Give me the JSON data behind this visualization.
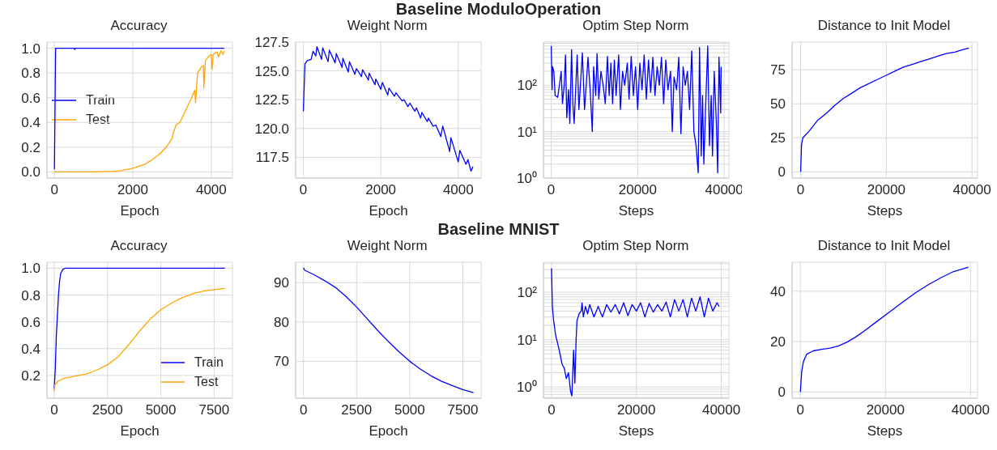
{
  "chart_data": [
    {
      "type": "line",
      "title": "Accuracy",
      "xlabel": "Epoch",
      "annotations": [
        "Baseline ModuloOperation"
      ],
      "xlim": [
        -190,
        4540
      ],
      "xticks": [
        0,
        2000,
        4000
      ],
      "ylim": [
        -0.05,
        1.05
      ],
      "yticks": [
        {
          "value": 0,
          "label": "0.0"
        },
        {
          "value": 0.2,
          "label": "0.2"
        },
        {
          "value": 0.4,
          "label": "0.4"
        },
        {
          "value": 0.6,
          "label": "0.6"
        },
        {
          "value": 0.8,
          "label": "0.8"
        },
        {
          "value": 1,
          "label": "1.0"
        }
      ],
      "grid": true,
      "legend": "center left",
      "series": [
        {
          "name": "Train",
          "color": "#0000ff",
          "x": [
            0,
            30,
            500,
            520,
            540,
            1000,
            2000,
            3000,
            4000,
            4330
          ],
          "values": [
            0.02,
            1.0,
            1.0,
            0.99,
            1.0,
            1.0,
            1.0,
            1.0,
            1.0,
            1.0
          ]
        },
        {
          "name": "Test",
          "color": "#ffa500",
          "x": [
            0,
            500,
            1000,
            1500,
            1700,
            2000,
            2300,
            2500,
            2700,
            2850,
            3000,
            3020,
            3100,
            3200,
            3350,
            3500,
            3580,
            3600,
            3650,
            3750,
            3800,
            3810,
            3850,
            3950,
            4000,
            4020,
            4050,
            4150,
            4180,
            4250,
            4300,
            4330
          ],
          "values": [
            0,
            0,
            0,
            0.005,
            0.01,
            0.03,
            0.06,
            0.1,
            0.15,
            0.2,
            0.27,
            0.3,
            0.38,
            0.4,
            0.5,
            0.6,
            0.66,
            0.56,
            0.8,
            0.85,
            0.86,
            0.68,
            0.9,
            0.94,
            0.95,
            0.83,
            0.95,
            0.97,
            0.93,
            0.98,
            0.95,
            0.98
          ]
        }
      ]
    },
    {
      "type": "line",
      "title": "Weight Norm",
      "xlabel": "Epoch",
      "xlim": [
        -200,
        4590
      ],
      "xticks": [
        0,
        2000,
        4000
      ],
      "ylim": [
        115.7,
        127.5
      ],
      "yticks": [
        117.5,
        {
          "value": 120,
          "label": "120.0"
        },
        122.5,
        {
          "value": 125,
          "label": "125.0"
        },
        127.5
      ],
      "grid": true,
      "series": [
        {
          "color": "#0000ff",
          "x": [
            0,
            40,
            100,
            200,
            250,
            320,
            350,
            470,
            500,
            640,
            670,
            820,
            850,
            1000,
            1020,
            1160,
            1190,
            1330,
            1370,
            1500,
            1530,
            1680,
            1700,
            1850,
            1870,
            2000,
            2040,
            2180,
            2210,
            2350,
            2390,
            2550,
            2600,
            2700,
            2750,
            2880,
            2920,
            3030,
            3060,
            3200,
            3230,
            3350,
            3420,
            3550,
            3600,
            3780,
            3810,
            4000,
            4040,
            4200,
            4250,
            4330,
            4380
          ],
          "values": [
            121.5,
            125.6,
            125.9,
            126.0,
            126.7,
            126.3,
            127.1,
            126.0,
            127.0,
            125.8,
            126.8,
            125.7,
            126.5,
            125.3,
            126.1,
            124.9,
            125.8,
            124.7,
            125.2,
            124.5,
            125.1,
            124.2,
            124.8,
            123.8,
            124.3,
            123.4,
            124.0,
            122.9,
            123.5,
            122.8,
            123.1,
            122.4,
            122.5,
            121.9,
            122.2,
            121.5,
            121.8,
            120.9,
            121.4,
            120.6,
            120.9,
            120.2,
            120.3,
            119.3,
            120.2,
            118.0,
            119.2,
            117.1,
            118.1,
            116.9,
            117.3,
            116.3,
            116.7
          ]
        }
      ]
    },
    {
      "type": "line",
      "title": "Optim Step Norm",
      "xlabel": "Steps",
      "xlim": [
        -1800,
        41100
      ],
      "xticks": [
        0,
        20000,
        40000
      ],
      "log": true,
      "ylim": [
        1,
        850
      ],
      "yticks": [
        {
          "value": 1,
          "label": "10⁰"
        },
        {
          "value": 2,
          "label": null
        },
        {
          "value": 3,
          "label": null
        },
        {
          "value": 4,
          "label": null
        },
        {
          "value": 5,
          "label": null
        },
        {
          "value": 6,
          "label": null
        },
        {
          "value": 7,
          "label": null
        },
        {
          "value": 8,
          "label": null
        },
        {
          "value": 9,
          "label": null
        },
        {
          "value": 10,
          "label": "10¹"
        },
        {
          "value": 20,
          "label": null
        },
        {
          "value": 30,
          "label": null
        },
        {
          "value": 40,
          "label": null
        },
        {
          "value": 50,
          "label": null
        },
        {
          "value": 60,
          "label": null
        },
        {
          "value": 70,
          "label": null
        },
        {
          "value": 80,
          "label": null
        },
        {
          "value": 90,
          "label": null
        },
        {
          "value": 100,
          "label": "10²"
        },
        {
          "value": 200,
          "label": null
        },
        {
          "value": 300,
          "label": null
        },
        {
          "value": 400,
          "label": null
        },
        {
          "value": 500,
          "label": null
        },
        {
          "value": 600,
          "label": null
        },
        {
          "value": 700,
          "label": null
        },
        {
          "value": 800,
          "label": null
        }
      ],
      "grid": true,
      "series": [
        {
          "color": "#0000ff",
          "x": [
            0,
            200,
            300,
            600,
            900,
            1500,
            2000,
            2300,
            2600,
            3000,
            3300,
            3600,
            4000,
            4300,
            4700,
            5000,
            5300,
            5700,
            6000,
            6400,
            6800,
            7200,
            7700,
            8100,
            8500,
            9000,
            9500,
            9800,
            10300,
            10600,
            11000,
            11500,
            12000,
            12500,
            13000,
            13400,
            13800,
            14200,
            14600,
            15000,
            15600,
            16000,
            16500,
            17000,
            17600,
            18000,
            18500,
            19000,
            19500,
            20000,
            20500,
            21000,
            21500,
            22000,
            22500,
            23000,
            23500,
            24000,
            24500,
            25000,
            25500,
            26000,
            26500,
            27000,
            27600,
            28000,
            28400,
            29000,
            29500,
            30000,
            30500,
            31000,
            31500,
            32000,
            32500,
            33000,
            33500,
            34000,
            34300,
            34700,
            35000,
            35300,
            35800,
            36200,
            36600,
            37000,
            37300,
            37700,
            38200,
            38500,
            38800,
            39200,
            39300
          ],
          "values": [
            700,
            80,
            250,
            200,
            60,
            55,
            120,
            200,
            40,
            100,
            450,
            20,
            80,
            15,
            580,
            40,
            15,
            100,
            450,
            30,
            120,
            500,
            30,
            100,
            400,
            80,
            10,
            250,
            60,
            480,
            50,
            200,
            100,
            40,
            420,
            60,
            300,
            40,
            350,
            60,
            450,
            30,
            200,
            100,
            300,
            50,
            420,
            60,
            250,
            30,
            300,
            80,
            450,
            50,
            350,
            70,
            400,
            60,
            250,
            100,
            400,
            40,
            350,
            80,
            200,
            10,
            150,
            80,
            400,
            9,
            250,
            100,
            200,
            30,
            550,
            10,
            5,
            1.3,
            650,
            3,
            60,
            2,
            60,
            700,
            5,
            60,
            3,
            200,
            15,
            1.3,
            400,
            25,
            250
          ]
        }
      ]
    },
    {
      "type": "line",
      "title": "Distance to Init Model",
      "xlabel": "Steps",
      "xlim": [
        -2000,
        41300
      ],
      "xticks": [
        0,
        20000,
        40000
      ],
      "ylim": [
        -4.6,
        95.4
      ],
      "yticks": [
        0,
        25,
        50,
        75
      ],
      "grid": true,
      "series": [
        {
          "color": "#0000ff",
          "x": [
            0,
            200,
            500,
            2000,
            3000,
            4000,
            6000,
            8000,
            10000,
            12000,
            14000,
            16000,
            18000,
            20000,
            22000,
            24000,
            26000,
            28000,
            30000,
            32000,
            34000,
            36000,
            38000,
            39300
          ],
          "values": [
            0,
            20,
            25,
            30,
            34,
            38,
            43,
            49,
            54,
            58,
            62,
            65,
            68,
            71,
            74,
            77,
            79,
            81,
            83,
            85,
            87,
            88,
            90,
            91
          ]
        }
      ]
    },
    {
      "type": "line",
      "title": "Accuracy",
      "xlabel": "Epoch",
      "annotations": [
        "Baseline MNIST"
      ],
      "xlim": [
        -340,
        8360
      ],
      "xticks": [
        0,
        2500,
        5000,
        7500
      ],
      "ylim": [
        0.03,
        1.045
      ],
      "yticks": [
        {
          "value": 0.2,
          "label": "0.2"
        },
        {
          "value": 0.4,
          "label": "0.4"
        },
        {
          "value": 0.6,
          "label": "0.6"
        },
        {
          "value": 0.8,
          "label": "0.8"
        },
        {
          "value": 1,
          "label": "1.0"
        }
      ],
      "grid": true,
      "legend": "bottom right",
      "series": [
        {
          "name": "Train",
          "color": "#0000ff",
          "x": [
            0,
            50,
            100,
            150,
            200,
            250,
            300,
            400,
            500,
            8000
          ],
          "values": [
            0.1,
            0.25,
            0.5,
            0.65,
            0.8,
            0.9,
            0.96,
            0.99,
            1.0,
            1.0
          ]
        },
        {
          "name": "Test",
          "color": "#ffa500",
          "x": [
            0,
            30,
            200,
            500,
            1000,
            1500,
            2000,
            2500,
            3000,
            3500,
            4000,
            4500,
            5000,
            5500,
            6000,
            6500,
            7000,
            7500,
            8000
          ],
          "values": [
            0.08,
            0.13,
            0.16,
            0.18,
            0.195,
            0.21,
            0.24,
            0.28,
            0.34,
            0.43,
            0.53,
            0.62,
            0.69,
            0.74,
            0.78,
            0.81,
            0.83,
            0.84,
            0.85
          ]
        }
      ]
    },
    {
      "type": "line",
      "title": "Weight Norm",
      "xlabel": "Epoch",
      "xlim": [
        -370,
        8360
      ],
      "xticks": [
        0,
        2500,
        5000,
        7500
      ],
      "ylim": [
        60.6,
        95.2
      ],
      "yticks": [
        70,
        80,
        90
      ],
      "grid": true,
      "series": [
        {
          "color": "#0000ff",
          "x": [
            0,
            50,
            500,
            1000,
            1500,
            2000,
            2500,
            3000,
            3500,
            4000,
            4500,
            5000,
            5500,
            6000,
            6500,
            7000,
            7500,
            8000
          ],
          "values": [
            93.8,
            93.2,
            92,
            90.5,
            88.8,
            86.5,
            83.8,
            80.8,
            77.8,
            75,
            72.4,
            70,
            68,
            66.3,
            64.9,
            63.8,
            62.8,
            62
          ]
        }
      ]
    },
    {
      "type": "line",
      "title": "Optim Step Norm",
      "xlabel": "Steps",
      "xlim": [
        -1900,
        41800
      ],
      "xticks": [
        0,
        20000,
        40000
      ],
      "log": true,
      "ylim": [
        0.58,
        430
      ],
      "yticks": [
        {
          "value": 0.6,
          "label": null
        },
        {
          "value": 0.7,
          "label": null
        },
        {
          "value": 0.8,
          "label": null
        },
        {
          "value": 0.9,
          "label": null
        },
        {
          "value": 1,
          "label": "10⁰"
        },
        {
          "value": 2,
          "label": null
        },
        {
          "value": 3,
          "label": null
        },
        {
          "value": 4,
          "label": null
        },
        {
          "value": 5,
          "label": null
        },
        {
          "value": 6,
          "label": null
        },
        {
          "value": 7,
          "label": null
        },
        {
          "value": 8,
          "label": null
        },
        {
          "value": 9,
          "label": null
        },
        {
          "value": 10,
          "label": "10¹"
        },
        {
          "value": 20,
          "label": null
        },
        {
          "value": 30,
          "label": null
        },
        {
          "value": 40,
          "label": null
        },
        {
          "value": 50,
          "label": null
        },
        {
          "value": 60,
          "label": null
        },
        {
          "value": 70,
          "label": null
        },
        {
          "value": 80,
          "label": null
        },
        {
          "value": 90,
          "label": null
        },
        {
          "value": 100,
          "label": "10²"
        },
        {
          "value": 200,
          "label": null
        },
        {
          "value": 300,
          "label": null
        },
        {
          "value": 400,
          "label": null
        }
      ],
      "grid": true,
      "series": [
        {
          "color": "#0000ff",
          "x": [
            0,
            200,
            500,
            1000,
            1500,
            2000,
            2500,
            3000,
            3500,
            4000,
            4500,
            4800,
            5000,
            5200,
            5500,
            5800,
            6000,
            6500,
            7000,
            7200,
            7500,
            8000,
            8500,
            9000,
            10000,
            11000,
            12000,
            13000,
            14000,
            15000,
            16000,
            17000,
            18000,
            19000,
            20000,
            21000,
            22000,
            23000,
            24000,
            25000,
            26000,
            27000,
            28000,
            29000,
            30000,
            31000,
            32000,
            33000,
            34000,
            35000,
            36000,
            37000,
            38000,
            39000,
            39500
          ],
          "values": [
            320,
            50,
            25,
            12,
            8,
            5,
            3,
            2.5,
            1.5,
            2,
            0.8,
            0.65,
            2,
            6,
            1.2,
            10,
            25,
            35,
            40,
            60,
            30,
            50,
            35,
            55,
            30,
            50,
            30,
            55,
            38,
            55,
            35,
            60,
            32,
            55,
            40,
            60,
            30,
            58,
            38,
            55,
            40,
            62,
            30,
            70,
            40,
            70,
            30,
            75,
            40,
            80,
            30,
            75,
            40,
            60,
            50
          ]
        }
      ]
    },
    {
      "type": "line",
      "title": "Distance to Init Model",
      "xlabel": "Steps",
      "xlim": [
        -1950,
        41650
      ],
      "xticks": [
        0,
        20000,
        40000
      ],
      "ylim": [
        -2.5,
        51.5
      ],
      "yticks": [
        0,
        20,
        40
      ],
      "grid": true,
      "series": [
        {
          "color": "#0000ff",
          "x": [
            0,
            300,
            700,
            1500,
            3000,
            5000,
            7000,
            9000,
            11000,
            13000,
            15000,
            18000,
            21000,
            24000,
            27000,
            30000,
            33000,
            36000,
            39500
          ],
          "values": [
            0,
            8,
            12,
            15,
            16.3,
            16.9,
            17.4,
            18.3,
            19.8,
            21.8,
            24.2,
            28,
            31.8,
            35.6,
            39.3,
            42.5,
            45.3,
            47.8,
            49.5
          ]
        }
      ]
    }
  ]
}
